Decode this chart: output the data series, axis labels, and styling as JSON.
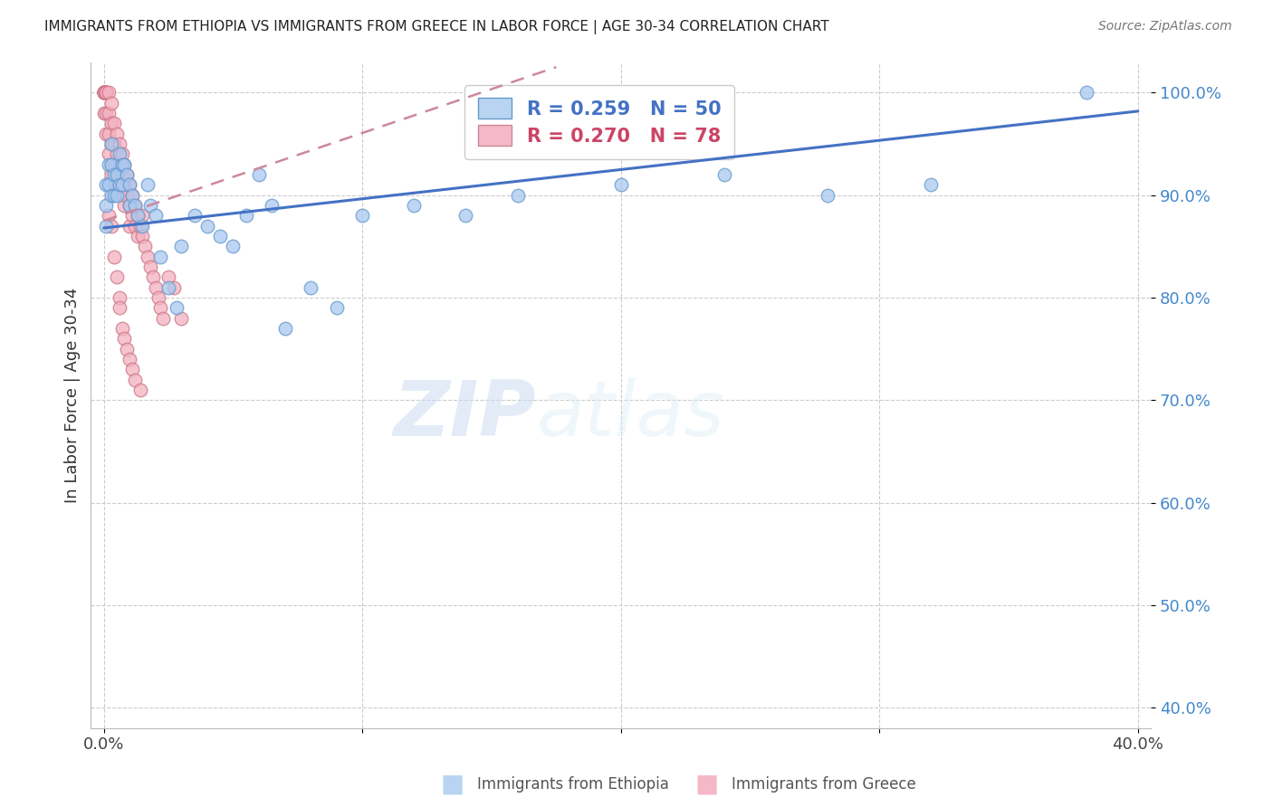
{
  "title": "IMMIGRANTS FROM ETHIOPIA VS IMMIGRANTS FROM GREECE IN LABOR FORCE | AGE 30-34 CORRELATION CHART",
  "source": "Source: ZipAtlas.com",
  "ylabel": "In Labor Force | Age 30-34",
  "ethiopia_color": "#a8c8f0",
  "ethiopia_edge_color": "#6699cc",
  "greece_color": "#f4b0c0",
  "greece_edge_color": "#cc7788",
  "ethiopia_R": 0.259,
  "ethiopia_N": 50,
  "greece_R": 0.27,
  "greece_N": 78,
  "trend_blue_color": "#4472c4",
  "trend_pink_color": "#cc8899",
  "legend_blue_color": "#4472c4",
  "legend_pink_color": "#cc4466",
  "background_color": "#ffffff",
  "grid_color": "#cccccc",
  "ytick_color": "#4488cc",
  "xlim": [
    -0.005,
    0.405
  ],
  "ylim": [
    0.38,
    1.03
  ],
  "yticks": [
    0.4,
    0.5,
    0.6,
    0.7,
    0.8,
    0.9,
    1.0
  ],
  "xticks": [
    0.0,
    0.1,
    0.2,
    0.3,
    0.4
  ],
  "blue_trend_x": [
    0.0,
    0.4
  ],
  "blue_trend_y": [
    0.868,
    0.982
  ],
  "pink_trend_x": [
    0.0,
    0.175
  ],
  "pink_trend_y": [
    0.875,
    1.025
  ],
  "ethiopia_x": [
    0.001,
    0.001,
    0.001,
    0.002,
    0.002,
    0.003,
    0.003,
    0.003,
    0.004,
    0.004,
    0.005,
    0.005,
    0.006,
    0.006,
    0.007,
    0.007,
    0.008,
    0.009,
    0.01,
    0.01,
    0.011,
    0.012,
    0.013,
    0.015,
    0.017,
    0.018,
    0.02,
    0.022,
    0.025,
    0.028,
    0.03,
    0.035,
    0.04,
    0.045,
    0.05,
    0.055,
    0.06,
    0.065,
    0.07,
    0.08,
    0.09,
    0.1,
    0.12,
    0.14,
    0.16,
    0.2,
    0.24,
    0.28,
    0.32,
    0.38
  ],
  "ethiopia_y": [
    0.91,
    0.89,
    0.87,
    0.93,
    0.91,
    0.95,
    0.93,
    0.9,
    0.92,
    0.9,
    0.92,
    0.9,
    0.94,
    0.91,
    0.93,
    0.91,
    0.93,
    0.92,
    0.91,
    0.89,
    0.9,
    0.89,
    0.88,
    0.87,
    0.91,
    0.89,
    0.88,
    0.84,
    0.81,
    0.79,
    0.85,
    0.88,
    0.87,
    0.86,
    0.85,
    0.88,
    0.92,
    0.89,
    0.77,
    0.81,
    0.79,
    0.88,
    0.89,
    0.88,
    0.9,
    0.91,
    0.92,
    0.9,
    0.91,
    1.0
  ],
  "greece_x": [
    0.0,
    0.0,
    0.0,
    0.0,
    0.0,
    0.0,
    0.0,
    0.0,
    0.0,
    0.0,
    0.001,
    0.001,
    0.001,
    0.001,
    0.001,
    0.002,
    0.002,
    0.002,
    0.002,
    0.003,
    0.003,
    0.003,
    0.003,
    0.003,
    0.004,
    0.004,
    0.004,
    0.004,
    0.005,
    0.005,
    0.005,
    0.006,
    0.006,
    0.006,
    0.007,
    0.007,
    0.007,
    0.008,
    0.008,
    0.008,
    0.009,
    0.009,
    0.01,
    0.01,
    0.01,
    0.011,
    0.011,
    0.012,
    0.012,
    0.013,
    0.013,
    0.014,
    0.015,
    0.015,
    0.016,
    0.017,
    0.018,
    0.019,
    0.02,
    0.021,
    0.022,
    0.023,
    0.025,
    0.027,
    0.03,
    0.002,
    0.003,
    0.004,
    0.005,
    0.006,
    0.006,
    0.007,
    0.008,
    0.009,
    0.01,
    0.011,
    0.012,
    0.014
  ],
  "greece_y": [
    1.0,
    1.0,
    1.0,
    1.0,
    1.0,
    1.0,
    1.0,
    1.0,
    1.0,
    0.98,
    1.0,
    1.0,
    1.0,
    0.98,
    0.96,
    1.0,
    0.98,
    0.96,
    0.94,
    0.99,
    0.97,
    0.95,
    0.93,
    0.92,
    0.97,
    0.95,
    0.93,
    0.91,
    0.96,
    0.94,
    0.92,
    0.95,
    0.93,
    0.91,
    0.94,
    0.92,
    0.9,
    0.93,
    0.91,
    0.89,
    0.92,
    0.9,
    0.91,
    0.89,
    0.87,
    0.9,
    0.88,
    0.89,
    0.87,
    0.88,
    0.86,
    0.87,
    0.88,
    0.86,
    0.85,
    0.84,
    0.83,
    0.82,
    0.81,
    0.8,
    0.79,
    0.78,
    0.82,
    0.81,
    0.78,
    0.88,
    0.87,
    0.84,
    0.82,
    0.8,
    0.79,
    0.77,
    0.76,
    0.75,
    0.74,
    0.73,
    0.72,
    0.71
  ]
}
